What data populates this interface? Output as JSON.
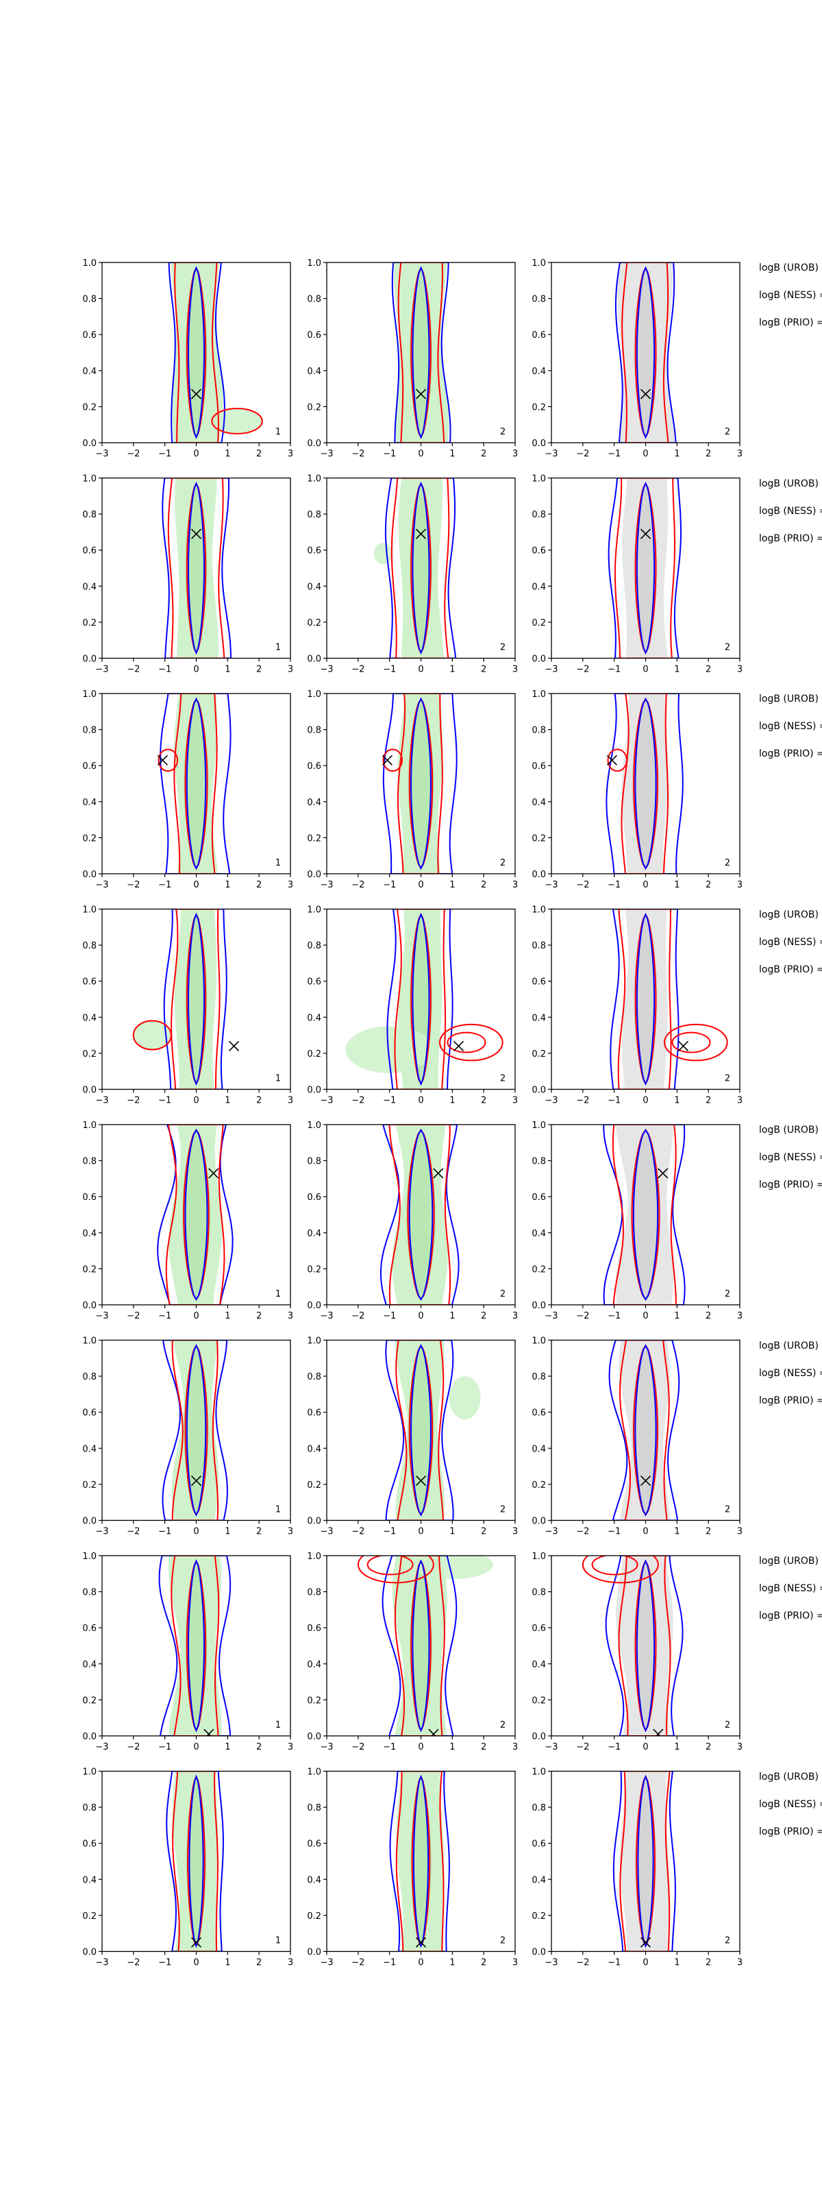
{
  "chart_data": {
    "type": "density_contour_grid",
    "xlim": [
      -3,
      3
    ],
    "ylim": [
      0,
      1
    ],
    "xticks": [
      "−3",
      "−2",
      "−1",
      "0",
      "1",
      "2",
      "3"
    ],
    "yticks": [
      "0.0",
      "0.2",
      "0.4",
      "0.6",
      "0.8",
      "1.0"
    ],
    "colors": {
      "blue": "#0000ff",
      "red": "#ff0000",
      "green_fill": "#cff2cc",
      "green_fill_dark": "#b3e3ae",
      "gray_fill": "#e6e6e6",
      "gray_fill_dark": "#cfcfcf"
    },
    "column_fill": [
      "green",
      "green",
      "gray"
    ],
    "column_labels": [
      "1",
      "2",
      "2"
    ],
    "row_notes": [
      "logB (UROB) =",
      "logB (NESS) =",
      "logB (PRIO) ="
    ],
    "rows": [
      {
        "marker": [
          0.0,
          0.27
        ],
        "blue": [
          0.75,
          0.8
        ],
        "red": [
          0.6,
          0.6
        ],
        "fill": [
          0.72,
          0.9
        ],
        "core": 0.25,
        "features": [
          {
            "cols": [
              0
            ],
            "kind": "blob",
            "x": 1.3,
            "y": 0.12,
            "sx": 0.8,
            "sy": 0.07,
            "types": [
              "red",
              "fill"
            ]
          }
        ]
      },
      {
        "marker": [
          0.0,
          0.69
        ],
        "blue": [
          0.95,
          0.8
        ],
        "red": [
          0.8,
          0.6
        ],
        "fill": [
          0.6,
          0.6
        ],
        "core": 0.25,
        "features": [
          {
            "cols": [
              1
            ],
            "kind": "blob",
            "x": -1.2,
            "y": 0.58,
            "sx": 0.3,
            "sy": 0.06,
            "types": [
              "fill"
            ]
          }
        ]
      },
      {
        "marker": [
          -1.07,
          0.63
        ],
        "blue": [
          1.0,
          0.9
        ],
        "red": [
          0.6,
          0.7
        ],
        "fill": [
          0.6,
          0.8
        ],
        "core": 0.3,
        "features": [
          {
            "cols": [
              0,
              1,
              2
            ],
            "kind": "blob",
            "x": -0.9,
            "y": 0.63,
            "sx": 0.3,
            "sy": 0.06,
            "types": [
              "red"
            ]
          }
        ]
      },
      {
        "marker": [
          1.2,
          0.24
        ],
        "blue": [
          0.9,
          0.7
        ],
        "red": [
          0.7,
          0.6
        ],
        "fill": [
          0.6,
          0.6
        ],
        "core": 0.25,
        "features": [
          {
            "cols": [
              0
            ],
            "kind": "blob",
            "x": -1.4,
            "y": 0.3,
            "sx": 0.6,
            "sy": 0.08,
            "types": [
              "red",
              "fill"
            ]
          },
          {
            "cols": [
              1,
              2
            ],
            "kind": "loop",
            "x": 1.6,
            "y": 0.26,
            "sx": 1.0,
            "sy": 0.1,
            "types": [
              "red"
            ]
          },
          {
            "cols": [
              1
            ],
            "kind": "blob",
            "x": -1.0,
            "y": 0.22,
            "sx": 1.4,
            "sy": 0.13,
            "types": [
              "fill"
            ]
          }
        ]
      },
      {
        "marker": [
          0.55,
          0.73
        ],
        "blue": [
          0.95,
          2.0
        ],
        "red": [
          0.8,
          1.2
        ],
        "fill": [
          0.7,
          1.5
        ],
        "core": 0.35,
        "features": []
      },
      {
        "marker": [
          0.0,
          0.22
        ],
        "blue": [
          0.8,
          1.9
        ],
        "red": [
          0.6,
          1.2
        ],
        "fill": [
          0.6,
          1.5
        ],
        "core": 0.3,
        "features": [
          {
            "cols": [
              1
            ],
            "kind": "blob",
            "x": 1.4,
            "y": 0.68,
            "sx": 0.5,
            "sy": 0.12,
            "types": [
              "fill"
            ]
          }
        ]
      },
      {
        "marker": [
          0.4,
          0.01
        ],
        "blue": [
          0.9,
          1.9
        ],
        "red": [
          0.65,
          1.0
        ],
        "fill": [
          0.7,
          1.4
        ],
        "core": 0.25,
        "features": [
          {
            "cols": [
              1,
              2
            ],
            "kind": "loop",
            "x": -0.8,
            "y": 0.95,
            "sx": 1.2,
            "sy": 0.1,
            "types": [
              "red"
            ]
          },
          {
            "cols": [
              1
            ],
            "kind": "blob",
            "x": 1.0,
            "y": 0.95,
            "sx": 1.3,
            "sy": 0.08,
            "types": [
              "fill"
            ]
          }
        ]
      },
      {
        "marker": [
          0.0,
          0.05
        ],
        "blue": [
          0.8,
          0.8
        ],
        "red": [
          0.65,
          0.6
        ],
        "fill": [
          0.65,
          0.7
        ],
        "core": 0.22,
        "features": []
      }
    ]
  }
}
